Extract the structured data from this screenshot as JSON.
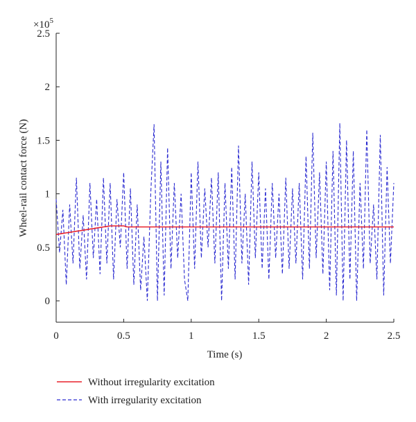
{
  "chart_data": {
    "type": "line",
    "xlabel": "Time (s)",
    "ylabel": "Wheel-rail contact force (N)",
    "multiplier": {
      "base": "×10",
      "exponent": "5"
    },
    "xlim": [
      0,
      2.5
    ],
    "ylim": [
      -0.2,
      2.5
    ],
    "xticks": [
      0,
      0.5,
      1,
      1.5,
      2,
      2.5
    ],
    "yticks": [
      0,
      0.5,
      1,
      1.5,
      2,
      2.5
    ],
    "x": [
      0,
      0.025,
      0.05,
      0.075,
      0.1,
      0.125,
      0.15,
      0.175,
      0.2,
      0.225,
      0.25,
      0.275,
      0.3,
      0.325,
      0.35,
      0.375,
      0.4,
      0.425,
      0.45,
      0.475,
      0.5,
      0.525,
      0.55,
      0.575,
      0.6,
      0.625,
      0.65,
      0.675,
      0.7,
      0.725,
      0.75,
      0.775,
      0.8,
      0.825,
      0.85,
      0.875,
      0.9,
      0.925,
      0.95,
      0.975,
      1,
      1.025,
      1.05,
      1.075,
      1.1,
      1.125,
      1.15,
      1.175,
      1.2,
      1.225,
      1.25,
      1.275,
      1.3,
      1.325,
      1.35,
      1.375,
      1.4,
      1.425,
      1.45,
      1.475,
      1.5,
      1.525,
      1.55,
      1.575,
      1.6,
      1.625,
      1.65,
      1.675,
      1.7,
      1.725,
      1.75,
      1.775,
      1.8,
      1.825,
      1.85,
      1.875,
      1.9,
      1.925,
      1.95,
      1.975,
      2,
      2.025,
      2.05,
      2.075,
      2.1,
      2.125,
      2.15,
      2.175,
      2.2,
      2.225,
      2.25,
      2.275,
      2.3,
      2.325,
      2.35,
      2.375,
      2.4,
      2.425,
      2.45,
      2.475,
      2.5
    ],
    "series": [
      {
        "name": "Without irregularity excitation",
        "color": "#e8202a",
        "dash": "solid",
        "values": [
          0.62,
          0.625,
          0.63,
          0.635,
          0.64,
          0.645,
          0.65,
          0.655,
          0.66,
          0.665,
          0.67,
          0.675,
          0.68,
          0.685,
          0.69,
          0.695,
          0.7,
          0.7,
          0.7,
          0.7,
          0.7,
          0.69,
          0.69,
          0.69,
          0.69,
          0.69,
          0.69,
          0.69,
          0.69,
          0.69,
          0.69,
          0.69,
          0.69,
          0.69,
          0.69,
          0.69,
          0.69,
          0.69,
          0.69,
          0.69,
          0.69,
          0.69,
          0.69,
          0.69,
          0.69,
          0.69,
          0.69,
          0.69,
          0.69,
          0.69,
          0.69,
          0.69,
          0.69,
          0.69,
          0.69,
          0.69,
          0.69,
          0.69,
          0.69,
          0.69,
          0.69,
          0.69,
          0.69,
          0.69,
          0.69,
          0.69,
          0.69,
          0.69,
          0.69,
          0.69,
          0.69,
          0.69,
          0.69,
          0.69,
          0.69,
          0.69,
          0.69,
          0.69,
          0.69,
          0.69,
          0.69,
          0.69,
          0.69,
          0.69,
          0.69,
          0.69,
          0.69,
          0.69,
          0.69,
          0.69,
          0.69,
          0.69,
          0.69,
          0.69,
          0.69,
          0.69,
          0.69,
          0.69,
          0.69,
          0.69,
          0.69
        ]
      },
      {
        "name": "With irregularity excitation",
        "color": "#2a2ad0",
        "dash": "dashed",
        "values": [
          0.95,
          0.45,
          0.85,
          0.15,
          0.9,
          0.35,
          1.15,
          0.3,
          0.8,
          0.2,
          1.1,
          0.4,
          0.95,
          0.25,
          1.15,
          0.35,
          1.1,
          0.2,
          0.95,
          0.5,
          1.2,
          0.3,
          1.05,
          0.15,
          0.9,
          0.1,
          0.6,
          0.0,
          1.0,
          1.65,
          0.0,
          1.3,
          0.05,
          1.43,
          0.3,
          1.1,
          0.4,
          1.0,
          0.2,
          0.0,
          1.2,
          0.3,
          1.3,
          0.4,
          1.05,
          0.5,
          1.15,
          0.35,
          1.2,
          0.0,
          1.1,
          0.3,
          1.25,
          0.2,
          1.45,
          0.35,
          1.0,
          0.15,
          1.3,
          0.4,
          1.2,
          0.3,
          1.05,
          0.2,
          1.1,
          0.4,
          1.0,
          0.25,
          1.15,
          0.3,
          1.05,
          0.35,
          1.1,
          0.2,
          1.35,
          0.3,
          1.57,
          0.4,
          1.2,
          0.25,
          1.3,
          0.1,
          1.4,
          0.05,
          1.66,
          0.0,
          1.5,
          0.2,
          1.4,
          0.0,
          1.1,
          0.3,
          1.6,
          0.35,
          0.9,
          0.2,
          1.55,
          0.05,
          1.25,
          0.35,
          1.1
        ]
      }
    ]
  }
}
